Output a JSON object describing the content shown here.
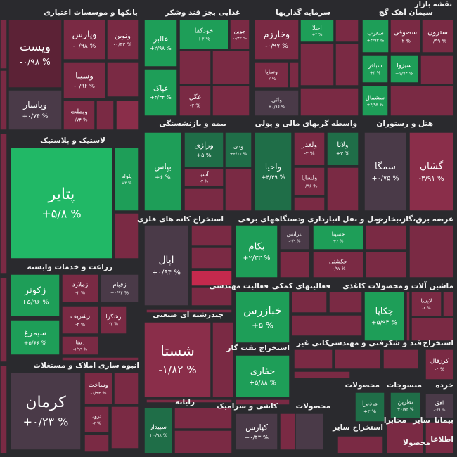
{
  "header": {
    "title": "نقشه بازار"
  },
  "sectors": [
    {
      "title": "بانکها و موسسات اعتباری",
      "tiles": [
        {
          "name": "ویست",
          "change": "-۰/۹۸ %"
        },
        {
          "name": "وپارس",
          "change": "-۰/۹۸ %"
        },
        {
          "name": "ونوین",
          "change": "-۰/۴۳ %"
        },
        {
          "name": "وسینا",
          "change": "-۰/۹۶ %"
        },
        {
          "name": "وبملت",
          "change": "-۰/۷۴ %"
        },
        {
          "name": "وپاسار",
          "change": "+۰/۷۴ %"
        }
      ]
    },
    {
      "title": "غذایی بجز قند وشکر",
      "tiles": [
        {
          "name": "غالبر",
          "change": "+۲/۹۸ %"
        },
        {
          "name": "خودکفا",
          "change": "+۳ %"
        },
        {
          "name": "جوین",
          "change": "-۰/۴۳ %"
        },
        {
          "name": "غپاک",
          "change": "+۴/۳۴ %"
        },
        {
          "name": "غگل",
          "change": "-۲ %"
        }
      ]
    },
    {
      "title": "سرمایه گذاریها",
      "tiles": [
        {
          "name": "وخارزم",
          "change": "-۰/۹۷ %"
        },
        {
          "name": "اعتلا",
          "change": "+۴ %"
        },
        {
          "name": "وساپا",
          "change": "-۲ %"
        },
        {
          "name": "واتی",
          "change": "+۰/۸۶ %"
        }
      ]
    },
    {
      "title": "سیمان آهک گچ",
      "tiles": [
        {
          "name": "سترون",
          "change": "-۰/۹۹ %"
        },
        {
          "name": "سصوفی",
          "change": "-۲ %"
        },
        {
          "name": "سغرب",
          "change": "+۴/۹۳ %"
        },
        {
          "name": "سیزوا",
          "change": "+۱/۷۴ %"
        },
        {
          "name": "سباقر",
          "change": "+۳ %"
        },
        {
          "name": "سشمال",
          "change": "+۴/۹۳ %"
        }
      ]
    },
    {
      "title": "لاستیک و پلاستیک",
      "tiles": [
        {
          "name": "پتایر",
          "change": "+۵/۸ %"
        },
        {
          "name": "پلوله",
          "change": "+۳ %"
        }
      ]
    },
    {
      "title": "بیمه و بازنشستگی",
      "tiles": [
        {
          "name": "بپاس",
          "change": "+۶ %"
        },
        {
          "name": "ورازی",
          "change": "+۵ %"
        },
        {
          "name": "ودی",
          "change": "+۲/۶۶ %"
        },
        {
          "name": "آسیا",
          "change": "-۲ %"
        }
      ]
    },
    {
      "title": "واسطه گریهای مالی و پولی",
      "tiles": [
        {
          "name": "واحیا",
          "change": "+۴/۴۹ %"
        },
        {
          "name": "ولغدر",
          "change": "-۲ %"
        },
        {
          "name": "ولانا",
          "change": "+۳ %"
        },
        {
          "name": "ولساپا",
          "change": "-۰/۹۶ %"
        }
      ]
    },
    {
      "title": "هتل و رستوران",
      "tiles": [
        {
          "name": "سمگا",
          "change": "+۰/۷۵ %"
        },
        {
          "name": "گشان",
          "change": "-۳/۹۱ %"
        }
      ]
    },
    {
      "title": "استخراج کانه های فلزی",
      "tiles": [
        {
          "name": "اپال",
          "change": "+۰/۹۴ %"
        }
      ]
    },
    {
      "title": "دستگاههای برقی",
      "tiles": [
        {
          "name": "بکام",
          "change": "+۲/۳۳ %"
        },
        {
          "name": "بترانس",
          "change": "-۰/۹ %"
        }
      ]
    },
    {
      "title": "حمل و نقل انبارداری و",
      "tiles": [
        {
          "name": "حسینا",
          "change": "+۶ %"
        },
        {
          "name": "حکشتی",
          "change": "-۰/۹۷ %"
        }
      ]
    },
    {
      "title": "عرضه برق،گاز،بخار و",
      "tiles": []
    },
    {
      "title": "زراعت و خدمات وابسته",
      "tiles": [
        {
          "name": "زکوثر",
          "change": "+۵/۹۶ %"
        },
        {
          "name": "زملارد",
          "change": "-۲ %"
        },
        {
          "name": "زقیام",
          "change": "+۰/۹۴ %"
        },
        {
          "name": "زشریف",
          "change": "-۲ %"
        },
        {
          "name": "زشگزا",
          "change": "-۲ %"
        },
        {
          "name": "سیمرغ",
          "change": "+۵/۶۶ %"
        },
        {
          "name": "زبینا",
          "change": "-۱/۹۹ %"
        }
      ]
    },
    {
      "title": "فعالیت مهندسی",
      "tiles": [
        {
          "name": "خبازرس",
          "change": "+۵ %"
        }
      ]
    },
    {
      "title": "فعالیتهای کمکی",
      "tiles": []
    },
    {
      "title": "محصولات کاغذی",
      "tiles": [
        {
          "name": "چکاپا",
          "change": "+۵/۹۴ %"
        }
      ]
    },
    {
      "title": "ماشین آلات و",
      "tiles": [
        {
          "name": "لابسا",
          "change": "-۲ %"
        }
      ]
    },
    {
      "title": "چندرشته ای صنعتی",
      "tiles": [
        {
          "name": "شستا",
          "change": "-۱/۸۲ %"
        }
      ]
    },
    {
      "title": "استخراج نفت گاز",
      "tiles": [
        {
          "name": "حفاری",
          "change": "+۵/۸۸ %"
        }
      ]
    },
    {
      "title": "کانی غیر",
      "tiles": []
    },
    {
      "title": "فنی و مهندسی",
      "tiles": []
    },
    {
      "title": "قند و شکر",
      "tiles": []
    },
    {
      "title": "استخراج",
      "tiles": [
        {
          "name": "کرزفال",
          "change": "-۲ %"
        }
      ]
    },
    {
      "title": "انبوه سازی املاک و مستغلات",
      "tiles": [
        {
          "name": "کرمان",
          "change": "+۰/۲۳ %"
        },
        {
          "name": "وساخت",
          "change": "-۰/۹۴ %"
        },
        {
          "name": "ثرود",
          "change": "-۲ %"
        }
      ]
    },
    {
      "title": "رایانه",
      "tiles": [
        {
          "name": "سپیدار",
          "change": "+۰/۹۸ %"
        }
      ]
    },
    {
      "title": "کاشی و سرامیک",
      "tiles": [
        {
          "name": "کپارس",
          "change": "+۰/۴۳ %"
        }
      ]
    },
    {
      "title": "محصولات",
      "tiles": [
        {
          "name": "مادیرا",
          "change": "+۳ %"
        }
      ]
    },
    {
      "title": "منسوجات",
      "tiles": [
        {
          "name": "نطرین",
          "change": "+۰/۷۴ %"
        }
      ]
    },
    {
      "title": "خرده",
      "tiles": [
        {
          "name": "افق",
          "change": "-۰/۹ %"
        }
      ]
    },
    {
      "title": "محصولات",
      "tiles": []
    },
    {
      "title": "استخراج سایر",
      "tiles": []
    },
    {
      "title": "مخابرا",
      "tiles": []
    },
    {
      "title": "سایر",
      "tiles": []
    },
    {
      "title": "بیمانا",
      "tiles": []
    },
    {
      "title": "محصولا",
      "tiles": []
    },
    {
      "title": "اطلاعا",
      "tiles": []
    }
  ]
}
